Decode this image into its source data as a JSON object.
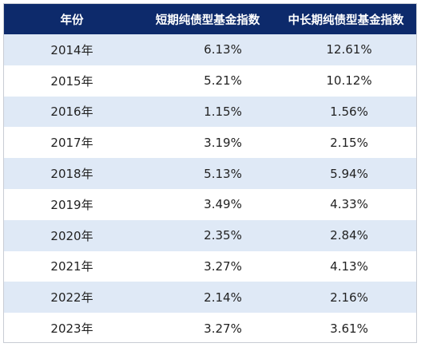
{
  "chart_data": {
    "type": "table",
    "columns": [
      "年份",
      "短期纯债型基金指数",
      "中长期纯债型基金指数"
    ],
    "rows": [
      [
        "2014年",
        "6.13%",
        "12.61%"
      ],
      [
        "2015年",
        "5.21%",
        "10.12%"
      ],
      [
        "2016年",
        "1.15%",
        "1.56%"
      ],
      [
        "2017年",
        "3.19%",
        "2.15%"
      ],
      [
        "2018年",
        "5.13%",
        "5.94%"
      ],
      [
        "2019年",
        "3.49%",
        "4.33%"
      ],
      [
        "2020年",
        "2.35%",
        "2.84%"
      ],
      [
        "2021年",
        "3.27%",
        "4.13%"
      ],
      [
        "2022年",
        "2.14%",
        "2.16%"
      ],
      [
        "2023年",
        "3.27%",
        "3.61%"
      ]
    ]
  },
  "colors": {
    "header_bg": "#0d2a6b",
    "header_text": "#ffffff",
    "band_row": "#dfe9f6",
    "plain_row": "#ffffff"
  }
}
